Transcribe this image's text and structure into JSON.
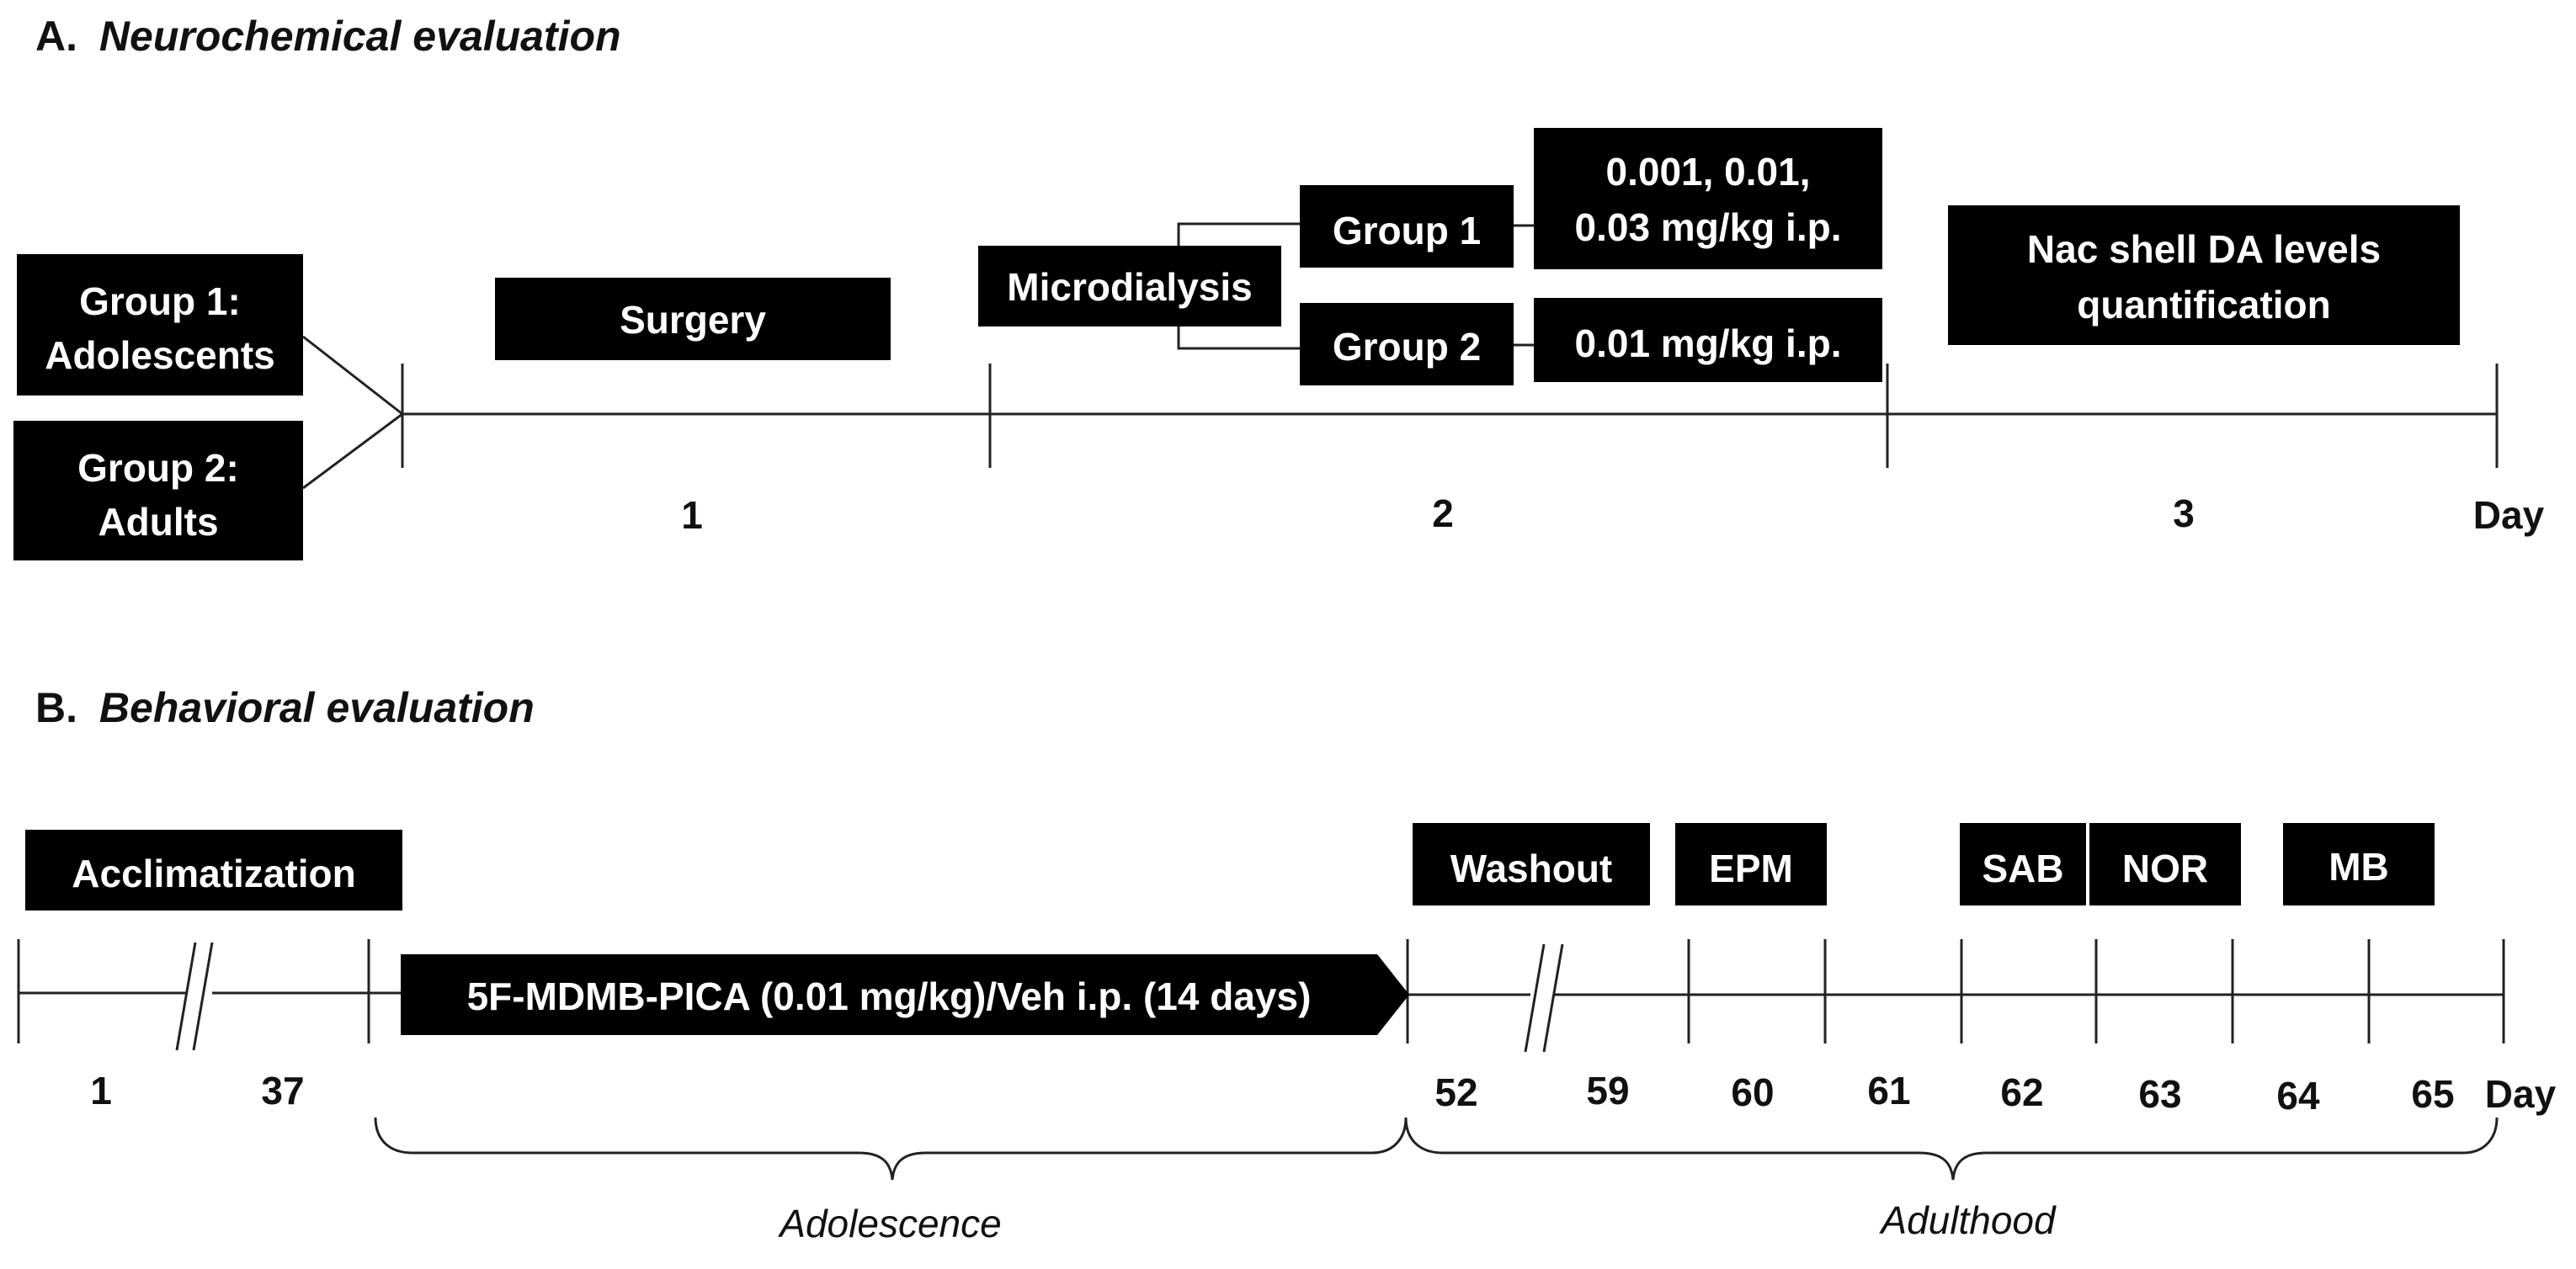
{
  "panel_a": {
    "label": "A.",
    "title": "Neurochemical evaluation",
    "groups": [
      {
        "line1": "Group 1:",
        "line2": "Adolescents"
      },
      {
        "line1": "Group 2:",
        "line2": "Adults"
      }
    ],
    "surgery": "Surgery",
    "microdialysis": "Microdialysis",
    "dose_group1": {
      "label": "Group 1",
      "line1": "0.001, 0.01,",
      "line2": "0.03 mg/kg i.p."
    },
    "dose_group2": {
      "label": "Group 2",
      "dose": "0.01 mg/kg i.p."
    },
    "quantification": {
      "line1": "Nac shell DA levels",
      "line2": "quantification"
    },
    "days": [
      "1",
      "2",
      "3"
    ],
    "day_axis_label": "Day"
  },
  "panel_b": {
    "label": "B.",
    "title": "Behavioral evaluation",
    "acclimatization": "Acclimatization",
    "treatment": "5F-MDMB-PICA (0.01 mg/kg)/Veh i.p. (14 days)",
    "washout": "Washout",
    "tests": [
      "EPM",
      "SAB",
      "NOR",
      "MB"
    ],
    "days": [
      "1",
      "37",
      "52",
      "59",
      "60",
      "61",
      "62",
      "63",
      "64",
      "65"
    ],
    "day_axis_label": "Day",
    "periods": [
      "Adolescence",
      "Adulthood"
    ]
  }
}
